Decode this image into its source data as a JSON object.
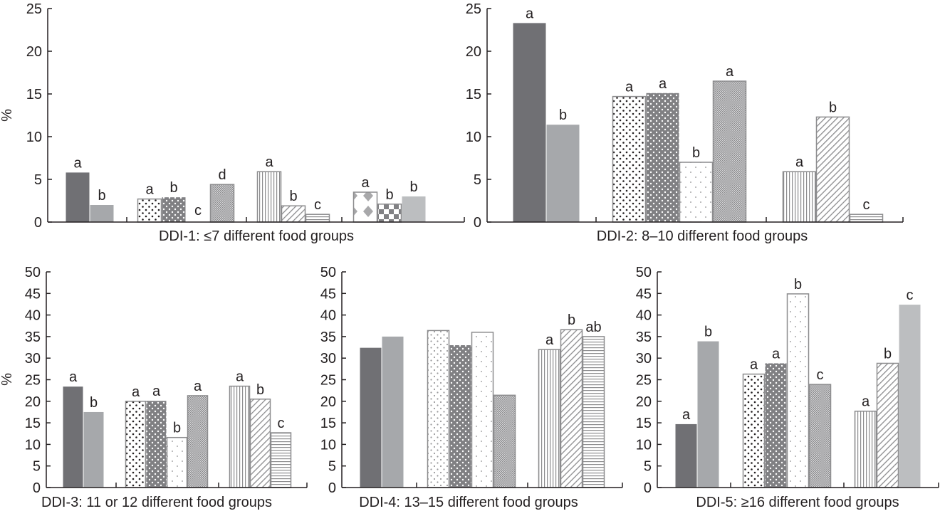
{
  "chart_data": [
    {
      "type": "bar",
      "title": "DDI-1: ≤7 different food groups",
      "ylabel": "%",
      "ylim": [
        0,
        25
      ],
      "yticks": [
        "0",
        "5",
        "10",
        "15",
        "20",
        "25"
      ],
      "groups": [
        {
          "bars": [
            {
              "pattern": "solid-dark",
              "value": 5.8,
              "label": "a"
            },
            {
              "pattern": "solid-mid",
              "value": 2.0,
              "label": "b"
            }
          ]
        },
        {
          "bars": [
            {
              "pattern": "dots-black",
              "value": 2.7,
              "label": "a"
            },
            {
              "pattern": "dots-white-on-gray",
              "value": 2.9,
              "label": "b"
            },
            {
              "pattern": "dots-sparse",
              "value": 0.0,
              "label": "c"
            },
            {
              "pattern": "crosshatch",
              "value": 4.4,
              "label": "d"
            }
          ]
        },
        {
          "bars": [
            {
              "pattern": "vertical-stripes",
              "value": 5.9,
              "label": "a"
            },
            {
              "pattern": "diagonal-stripes",
              "value": 1.9,
              "label": "b"
            },
            {
              "pattern": "horizontal-stripes",
              "value": 0.9,
              "label": "c"
            }
          ]
        },
        {
          "bars": [
            {
              "pattern": "diamonds",
              "value": 3.5,
              "label": "a"
            },
            {
              "pattern": "checker",
              "value": 2.1,
              "label": "b"
            },
            {
              "pattern": "solid-light",
              "value": 3.0,
              "label": "b"
            }
          ]
        }
      ]
    },
    {
      "type": "bar",
      "title": "DDI-2: 8–10 different food groups",
      "ylabel": "",
      "ylim": [
        0,
        25
      ],
      "yticks": [
        "0",
        "5",
        "10",
        "15",
        "20",
        "25"
      ],
      "groups": [
        {
          "bars": [
            {
              "pattern": "solid-dark",
              "value": 23.3,
              "label": "a"
            },
            {
              "pattern": "solid-mid",
              "value": 11.4,
              "label": "b"
            }
          ]
        },
        {
          "bars": [
            {
              "pattern": "dots-black",
              "value": 14.7,
              "label": "a"
            },
            {
              "pattern": "dots-white-on-gray",
              "value": 15.1,
              "label": "a"
            },
            {
              "pattern": "dots-sparse",
              "value": 7.0,
              "label": "b"
            },
            {
              "pattern": "crosshatch",
              "value": 16.5,
              "label": "a"
            }
          ]
        },
        {
          "bars": [
            {
              "pattern": "vertical-stripes",
              "value": 5.9,
              "label": "a"
            },
            {
              "pattern": "diagonal-stripes",
              "value": 12.3,
              "label": "b"
            },
            {
              "pattern": "horizontal-stripes",
              "value": 0.9,
              "label": "c"
            }
          ]
        }
      ]
    },
    {
      "type": "bar",
      "title": "DDI-3: 11 or 12 different food groups",
      "ylabel": "%",
      "ylim": [
        0,
        50
      ],
      "yticks": [
        "0",
        "5",
        "10",
        "15",
        "20",
        "25",
        "30",
        "35",
        "40",
        "45",
        "50"
      ],
      "groups": [
        {
          "bars": [
            {
              "pattern": "solid-dark",
              "value": 23.4,
              "label": "a"
            },
            {
              "pattern": "solid-mid",
              "value": 17.5,
              "label": "b"
            }
          ]
        },
        {
          "bars": [
            {
              "pattern": "dots-black",
              "value": 20.0,
              "label": "a"
            },
            {
              "pattern": "dots-white-on-gray",
              "value": 20.1,
              "label": "a"
            },
            {
              "pattern": "dots-sparse",
              "value": 11.6,
              "label": "b"
            },
            {
              "pattern": "crosshatch",
              "value": 21.3,
              "label": "a"
            }
          ]
        },
        {
          "bars": [
            {
              "pattern": "vertical-stripes",
              "value": 23.5,
              "label": "a"
            },
            {
              "pattern": "diagonal-stripes",
              "value": 20.5,
              "label": "b"
            },
            {
              "pattern": "horizontal-stripes",
              "value": 12.7,
              "label": "c"
            }
          ]
        }
      ]
    },
    {
      "type": "bar",
      "title": "DDI-4: 13–15 different food groups",
      "ylabel": "",
      "ylim": [
        0,
        50
      ],
      "yticks": [
        "0",
        "5",
        "10",
        "15",
        "20",
        "25",
        "30",
        "35",
        "40",
        "45",
        "50"
      ],
      "groups": [
        {
          "bars": [
            {
              "pattern": "solid-dark",
              "value": 32.4,
              "label": ""
            },
            {
              "pattern": "solid-mid",
              "value": 35.0,
              "label": ""
            }
          ]
        },
        {
          "bars": [
            {
              "pattern": "dots-gray",
              "value": 36.4,
              "label": ""
            },
            {
              "pattern": "dots-white-on-gray",
              "value": 33.0,
              "label": ""
            },
            {
              "pattern": "dots-sparse",
              "value": 36.0,
              "label": ""
            },
            {
              "pattern": "crosshatch",
              "value": 21.4,
              "label": ""
            }
          ]
        },
        {
          "bars": [
            {
              "pattern": "vertical-stripes",
              "value": 32.0,
              "label": "a"
            },
            {
              "pattern": "diagonal-stripes",
              "value": 36.6,
              "label": "b"
            },
            {
              "pattern": "horizontal-stripes",
              "value": 35.0,
              "label": "ab"
            }
          ]
        }
      ]
    },
    {
      "type": "bar",
      "title": "DDI-5: ≥16 different food groups",
      "ylabel": "",
      "ylim": [
        0,
        50
      ],
      "yticks": [
        "0",
        "5",
        "10",
        "15",
        "20",
        "25",
        "30",
        "35",
        "40",
        "45",
        "50"
      ],
      "groups": [
        {
          "bars": [
            {
              "pattern": "solid-dark",
              "value": 14.7,
              "label": "a"
            },
            {
              "pattern": "solid-mid",
              "value": 33.9,
              "label": "b"
            }
          ]
        },
        {
          "bars": [
            {
              "pattern": "dots-black",
              "value": 26.3,
              "label": "a"
            },
            {
              "pattern": "dots-white-on-gray",
              "value": 28.8,
              "label": "a"
            },
            {
              "pattern": "dots-sparse",
              "value": 44.9,
              "label": "b"
            },
            {
              "pattern": "crosshatch",
              "value": 23.9,
              "label": "c"
            }
          ]
        },
        {
          "bars": [
            {
              "pattern": "vertical-stripes",
              "value": 17.7,
              "label": "a"
            },
            {
              "pattern": "diagonal-stripes",
              "value": 28.8,
              "label": "b"
            },
            {
              "pattern": "solid-light",
              "value": 42.4,
              "label": "c"
            }
          ]
        }
      ]
    }
  ],
  "colors": {
    "solid_dark": "#707074",
    "solid_mid": "#a6a8ab",
    "solid_light": "#bcbec0",
    "stroke": "#8c8c8e",
    "axis": "#231f20"
  }
}
